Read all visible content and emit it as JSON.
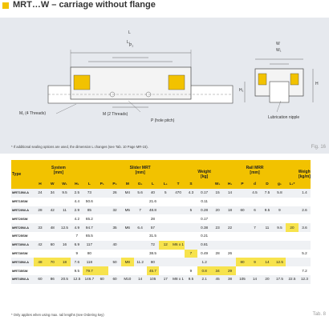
{
  "header": {
    "title": "MRT…W – carriage without flange"
  },
  "drawing": {
    "labels": {
      "l1": "L",
      "l3": "L₁",
      "lt": "L",
      "p2": "P₂",
      "p1": "P₁",
      "pp": "P",
      "m4": "M₁ (4 Threads)",
      "m2": "M (2 Threads)",
      "pitch": "P (hole pitch)",
      "w": "W",
      "w1": "W₁",
      "h": "H",
      "h1": "H₁",
      "t": "T",
      "lub": "Lubrication nipple"
    },
    "footnote": "* If additional sealing options are used, the dimension L changes (see Tab. 10 Page MR-15).",
    "fig": "Fig. 16"
  },
  "table": {
    "group_headers": {
      "type": "Type",
      "system": "System\n[mm]",
      "slider": "Slider MRT\n[mm]",
      "weight": "Weight\n[kg]",
      "rail": "Rail MRR\n[mm]",
      "weight_rail": "Weight\n[kg/m]"
    },
    "sub_headers": [
      "H",
      "W",
      "W₁",
      "H₁",
      "L",
      "P₁",
      "P₂",
      "M",
      "G₁",
      "L",
      "L₁",
      "T",
      "S",
      "W₁",
      "H₁",
      "P",
      "d",
      "D",
      "g₁",
      "L₁*"
    ],
    "rows": [
      {
        "type": "MRT15W-A",
        "cells": [
          "24",
          "34",
          "9.5",
          "2.5",
          "73",
          "",
          "26",
          "M4",
          "5.6",
          "40",
          "5",
          "470",
          "4.3",
          "0.17",
          "15",
          "14",
          "",
          "4.5",
          "7.5",
          "5.8",
          "",
          "1.4"
        ]
      },
      {
        "type": "MRT15SW",
        "cells": [
          "",
          "",
          "",
          "4.4",
          "50.6",
          "",
          "",
          "",
          "",
          "21.6",
          "",
          "",
          "",
          "0.11",
          "",
          "",
          "",
          "",
          "",
          "",
          "",
          ""
        ]
      },
      {
        "type": "MRT20W-A",
        "cells": [
          "28",
          "42",
          "11",
          "2.9",
          "85",
          "",
          "32",
          "M5",
          "7",
          "48.8",
          "",
          "",
          "5",
          "0.28",
          "20",
          "18",
          "60",
          "6",
          "9.5",
          "9",
          "",
          "2.6"
        ]
      },
      {
        "type": "MRT20SW",
        "cells": [
          "",
          "",
          "",
          "4.2",
          "65.2",
          "",
          "",
          "",
          "",
          "28",
          "",
          "",
          "",
          "0.17",
          "",
          "",
          "",
          "",
          "",
          "",
          "",
          ""
        ]
      },
      {
        "type": "MRT25W-A",
        "cells": [
          "33",
          "48",
          "12.5",
          "4.9",
          "94.7",
          "",
          "35",
          "M6",
          "6.4",
          "57",
          "",
          "",
          "",
          "0.38",
          "23",
          "22",
          "",
          "7",
          "11",
          "9.5",
          "20",
          "3.6"
        ]
      },
      {
        "type": "MRT25SW",
        "cells": [
          "",
          "",
          "",
          "7",
          "65.5",
          "",
          "",
          "",
          "",
          "31.5",
          "",
          "",
          "",
          "0.21",
          "",
          "",
          "",
          "",
          "",
          "",
          "",
          ""
        ]
      },
      {
        "type": "MRT30W-A",
        "cells": [
          "42",
          "60",
          "16",
          "6.9",
          "117",
          "",
          "40",
          "",
          "",
          "72",
          "12",
          "M6 x 1",
          "",
          "0.81",
          "",
          "",
          "",
          "",
          "",
          "",
          "",
          ""
        ]
      },
      {
        "type": "MRT30SW",
        "cells": [
          "",
          "",
          "",
          "9",
          "80",
          "",
          "",
          "",
          "",
          "38.5",
          "",
          "",
          "7",
          "0.49",
          "28",
          "26",
          "",
          "",
          "",
          "",
          "",
          "5.2"
        ]
      },
      {
        "type": "MRT35W-A",
        "cells": [
          "48",
          "70",
          "18",
          "7.6",
          "118",
          "",
          "50",
          "M8",
          "11.2",
          "80",
          "",
          "",
          "",
          "1.2",
          "",
          "",
          "80",
          "9",
          "14",
          "12.5",
          "",
          ""
        ]
      },
      {
        "type": "MRT35SW",
        "cells": [
          "",
          "",
          "",
          "9.5",
          "79.7",
          "",
          "",
          "",
          "",
          "45.7",
          "",
          "",
          "9",
          "0.8",
          "34",
          "29",
          "",
          "",
          "",
          "",
          "",
          "7.2"
        ]
      },
      {
        "type": "MRT45W-A",
        "cells": [
          "60",
          "86",
          "20.5",
          "12.5",
          "146.7",
          "60",
          "60",
          "M10",
          "14",
          "105",
          "17",
          "M8 x 1",
          "9.5",
          "2.1",
          "45",
          "38",
          "105",
          "14",
          "20",
          "17.5",
          "22.5",
          "12.3"
        ]
      }
    ],
    "highlights": {
      "MRT25W-A": [
        20
      ],
      "MRT30W-A": [
        10,
        11
      ],
      "MRT30SW": [
        12
      ],
      "MRT35W-A": [
        0,
        1,
        2,
        7,
        16,
        17,
        18,
        19
      ],
      "MRT35SW": [
        4,
        5,
        9,
        13,
        14,
        15
      ]
    },
    "footnote": "* Only applies when using max. rail lengths (see Ordering key)",
    "tab": "Tab. 8"
  }
}
